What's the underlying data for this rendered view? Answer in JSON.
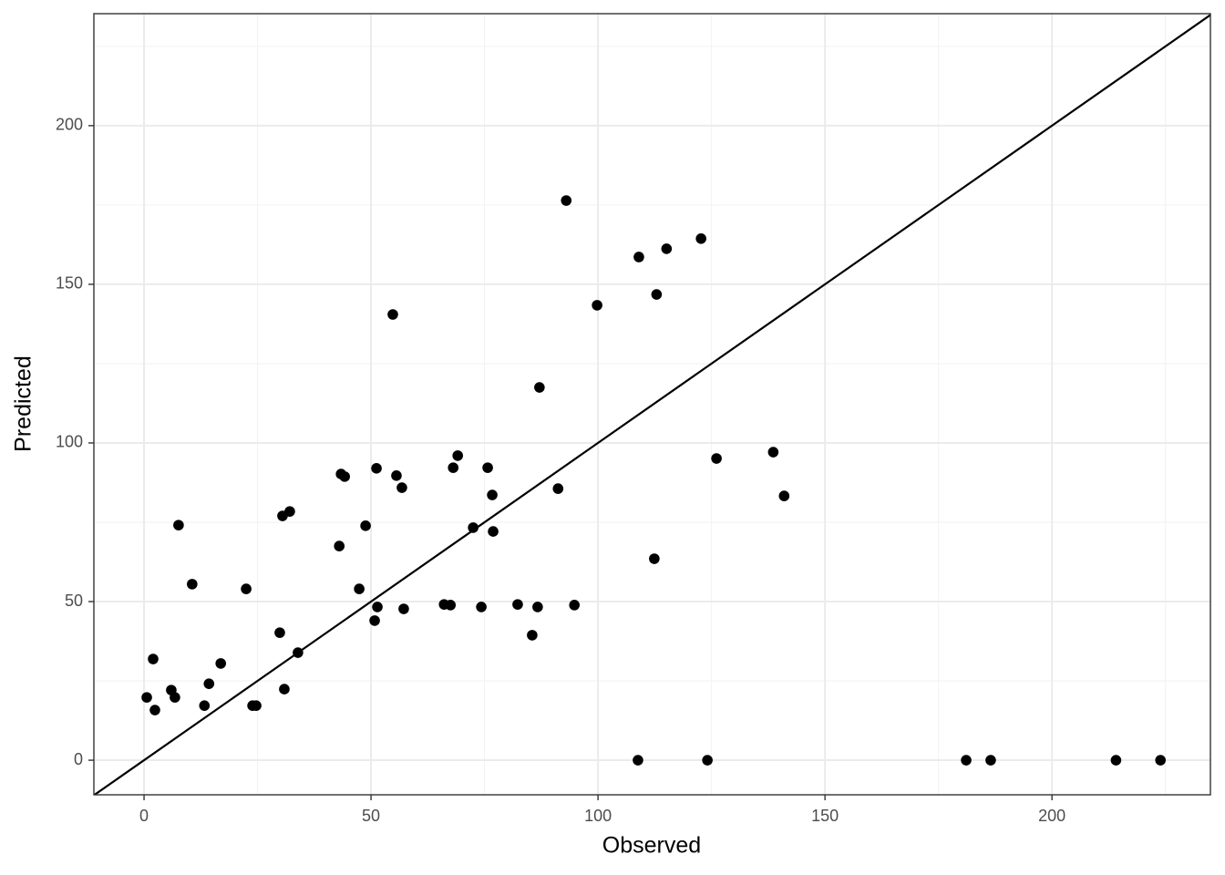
{
  "chart_data": {
    "type": "scatter",
    "x_label": "Observed",
    "y_label": "Predicted",
    "xlim": [
      -11.05,
      234.9
    ],
    "ylim": [
      -10.9,
      235.3
    ],
    "xticks": [
      0,
      50,
      100,
      150,
      200
    ],
    "yticks": [
      0,
      50,
      100,
      150,
      200
    ],
    "x_minor_grid": [
      25,
      75,
      125,
      175,
      225
    ],
    "y_minor_grid": [
      25,
      75,
      125,
      175,
      225
    ],
    "grid": true,
    "identity_line": true,
    "color": "#000000",
    "x": [
      0.6,
      2.0,
      2.4,
      6.0,
      6.8,
      7.6,
      10.6,
      13.3,
      14.3,
      16.9,
      22.5,
      23.9,
      24.7,
      29.9,
      30.5,
      30.9,
      32.1,
      33.9,
      43.0,
      43.4,
      44.2,
      47.4,
      48.8,
      50.8,
      51.2,
      51.4,
      54.8,
      55.6,
      56.8,
      57.2,
      66.1,
      67.5,
      68.1,
      69.1,
      72.5,
      74.3,
      75.7,
      76.7,
      76.9,
      82.3,
      85.5,
      86.7,
      87.1,
      91.2,
      93.0,
      94.8,
      99.8,
      108.8,
      109.0,
      112.4,
      112.9,
      115.1,
      122.7,
      124.1,
      126.1,
      138.6,
      141.0,
      181.1,
      186.5,
      214.1,
      223.9
    ],
    "values": [
      19.8,
      31.9,
      15.8,
      22.1,
      19.8,
      74.1,
      55.5,
      17.2,
      24.1,
      30.5,
      54.0,
      17.2,
      17.2,
      40.2,
      77.0,
      22.4,
      78.4,
      33.9,
      67.5,
      90.2,
      89.4,
      54.0,
      73.9,
      44.0,
      92.0,
      48.3,
      140.5,
      89.7,
      85.9,
      47.7,
      49.1,
      48.9,
      92.2,
      96.0,
      73.3,
      48.3,
      92.2,
      83.6,
      72.1,
      49.1,
      39.4,
      48.3,
      117.5,
      85.6,
      176.4,
      48.9,
      143.4,
      0,
      158.6,
      63.5,
      146.8,
      161.2,
      164.4,
      0,
      95.1,
      97.1,
      83.3,
      0,
      0,
      0,
      0
    ]
  }
}
